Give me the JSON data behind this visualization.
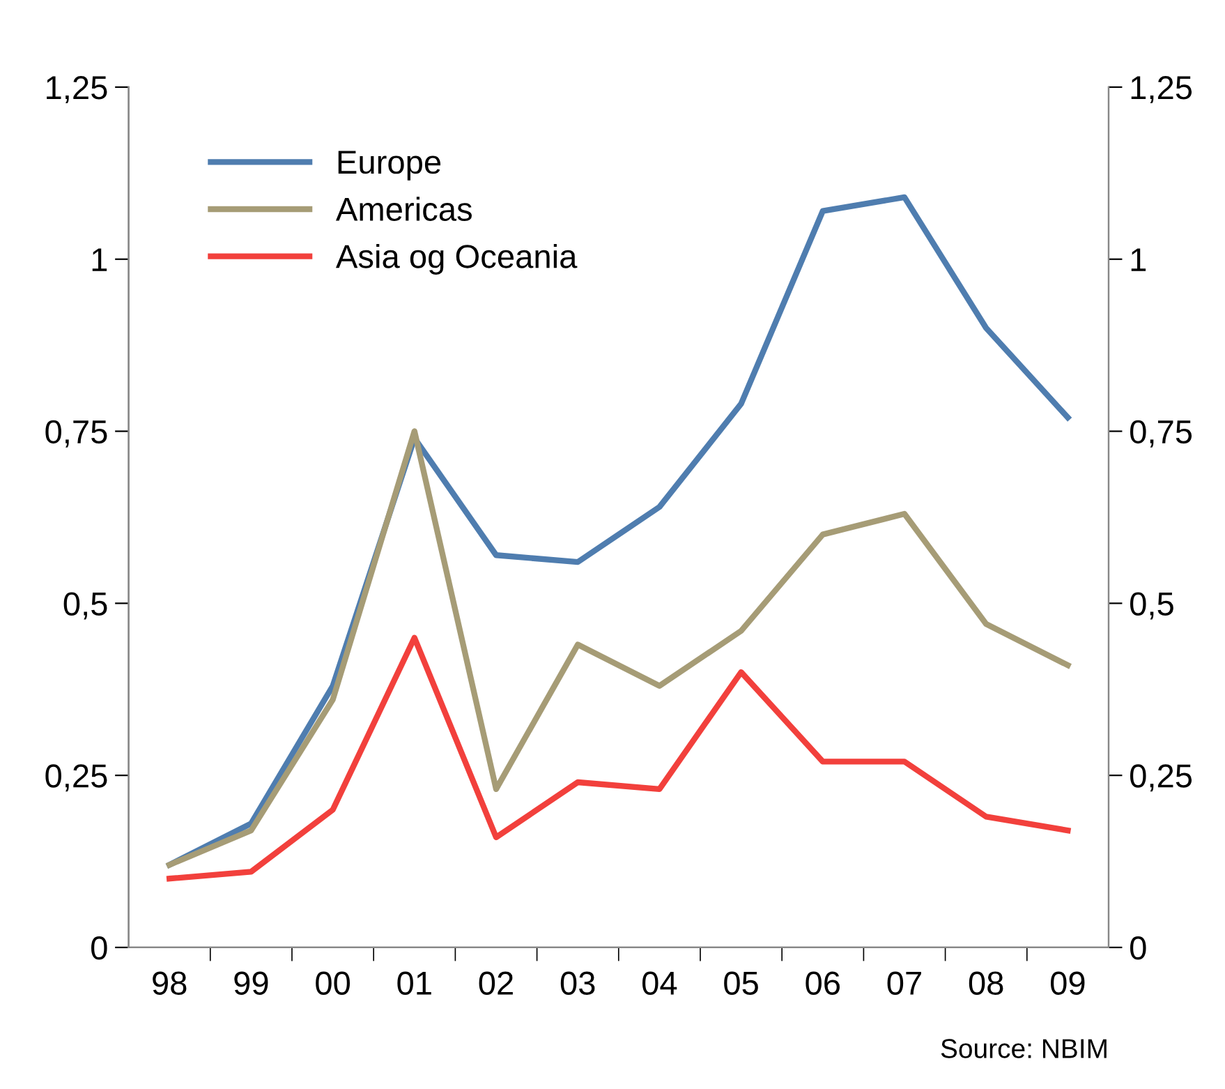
{
  "chart_data": {
    "type": "line",
    "categories": [
      "98",
      "99",
      "00",
      "01",
      "02",
      "03",
      "04",
      "05",
      "06",
      "07",
      "08",
      "09"
    ],
    "series": [
      {
        "name": "Europe",
        "color": "#4f7daf",
        "values": [
          0.12,
          0.18,
          0.38,
          0.74,
          0.57,
          0.56,
          0.64,
          0.79,
          1.07,
          1.09,
          0.9,
          0.77
        ]
      },
      {
        "name": "Americas",
        "color": "#a69c76",
        "values": [
          0.12,
          0.17,
          0.36,
          0.75,
          0.23,
          0.44,
          0.38,
          0.46,
          0.6,
          0.63,
          0.47,
          0.41
        ]
      },
      {
        "name": "Asia og Oceania",
        "color": "#f2403c",
        "values": [
          0.1,
          0.11,
          0.2,
          0.45,
          0.16,
          0.24,
          0.23,
          0.4,
          0.27,
          0.27,
          0.19,
          0.17
        ]
      }
    ],
    "ylim": [
      0,
      1.25
    ],
    "yticks": [
      {
        "value": 0,
        "label": "0"
      },
      {
        "value": 0.25,
        "label": "0,25"
      },
      {
        "value": 0.5,
        "label": "0,5"
      },
      {
        "value": 0.75,
        "label": "0,75"
      },
      {
        "value": 1,
        "label": "1"
      },
      {
        "value": 1.25,
        "label": "1,25"
      }
    ],
    "y2lim": [
      0,
      1.25
    ],
    "y2ticks": [
      {
        "value": 0,
        "label": "0"
      },
      {
        "value": 0.25,
        "label": "0,25"
      },
      {
        "value": 0.5,
        "label": "0,5"
      },
      {
        "value": 0.75,
        "label": "0,75"
      },
      {
        "value": 1,
        "label": "1"
      },
      {
        "value": 1.25,
        "label": "1,25"
      }
    ],
    "annotations": [
      "Source: NBIM"
    ],
    "legend": "top left",
    "grid": false,
    "marker": "none",
    "line_style": "solid"
  }
}
